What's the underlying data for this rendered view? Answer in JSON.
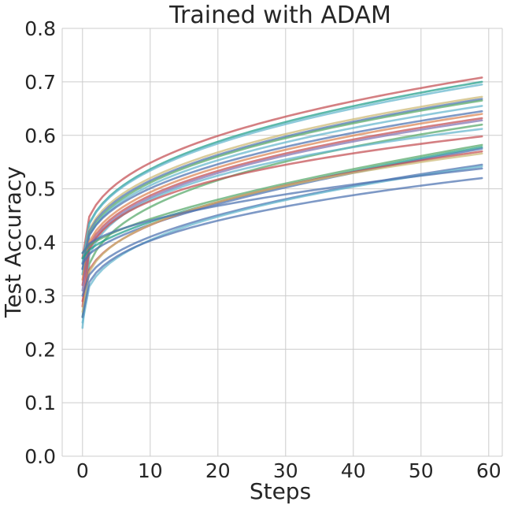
{
  "chart_data": {
    "type": "line",
    "title": "Trained with ADAM",
    "xlabel": "Steps",
    "ylabel": "Test Accuracy",
    "xlim": [
      -3,
      62
    ],
    "ylim": [
      0.0,
      0.8
    ],
    "xticks": [
      "0",
      "10",
      "20",
      "30",
      "40",
      "50",
      "60"
    ],
    "yticks": [
      "0.0",
      "0.1",
      "0.2",
      "0.3",
      "0.4",
      "0.5",
      "0.6",
      "0.7",
      "0.8"
    ],
    "grid": true,
    "legend": false,
    "palette": [
      "#c44e52",
      "#55a868",
      "#4c72b0",
      "#8172b2",
      "#ccb974",
      "#64b5cd",
      "#dd8452",
      "#1f9e89"
    ],
    "x_range": [
      0,
      59
    ],
    "series": [
      {
        "color": "#c44e52",
        "y0": 0.37,
        "y59": 0.708,
        "shape": 0.8
      },
      {
        "color": "#1f9e89",
        "y0": 0.36,
        "y59": 0.7,
        "shape": 0.82
      },
      {
        "color": "#64b5cd",
        "y0": 0.36,
        "y59": 0.695,
        "shape": 0.82
      },
      {
        "color": "#ccb974",
        "y0": 0.35,
        "y59": 0.672,
        "shape": 0.8
      },
      {
        "color": "#4c72b0",
        "y0": 0.35,
        "y59": 0.668,
        "shape": 0.82
      },
      {
        "color": "#55a868",
        "y0": 0.34,
        "y59": 0.665,
        "shape": 0.8
      },
      {
        "color": "#64b5cd",
        "y0": 0.34,
        "y59": 0.655,
        "shape": 0.8
      },
      {
        "color": "#4c72b0",
        "y0": 0.35,
        "y59": 0.645,
        "shape": 0.84
      },
      {
        "color": "#dd8452",
        "y0": 0.33,
        "y59": 0.64,
        "shape": 0.8
      },
      {
        "color": "#c44e52",
        "y0": 0.32,
        "y59": 0.632,
        "shape": 0.78
      },
      {
        "color": "#8172b2",
        "y0": 0.31,
        "y59": 0.628,
        "shape": 0.76
      },
      {
        "color": "#55a868",
        "y0": 0.26,
        "y59": 0.62,
        "shape": 0.7
      },
      {
        "color": "#64b5cd",
        "y0": 0.24,
        "y59": 0.612,
        "shape": 0.55
      },
      {
        "color": "#c44e52",
        "y0": 0.28,
        "y59": 0.598,
        "shape": 0.6
      },
      {
        "color": "#55a868",
        "y0": 0.38,
        "y59": 0.582,
        "shape": 1.45
      },
      {
        "color": "#1f9e89",
        "y0": 0.37,
        "y59": 0.578,
        "shape": 1.4
      },
      {
        "color": "#4c72b0",
        "y0": 0.36,
        "y59": 0.575,
        "shape": 1.35
      },
      {
        "color": "#c44e52",
        "y0": 0.29,
        "y59": 0.57,
        "shape": 0.85
      },
      {
        "color": "#ccb974",
        "y0": 0.27,
        "y59": 0.566,
        "shape": 0.75
      },
      {
        "color": "#4c72b0",
        "y0": 0.3,
        "y59": 0.545,
        "shape": 1.0
      },
      {
        "color": "#64b5cd",
        "y0": 0.25,
        "y59": 0.542,
        "shape": 0.8
      },
      {
        "color": "#4c72b0",
        "y0": 0.38,
        "y59": 0.538,
        "shape": 1.2
      },
      {
        "color": "#4c72b0",
        "y0": 0.26,
        "y59": 0.52,
        "shape": 0.75
      }
    ]
  }
}
